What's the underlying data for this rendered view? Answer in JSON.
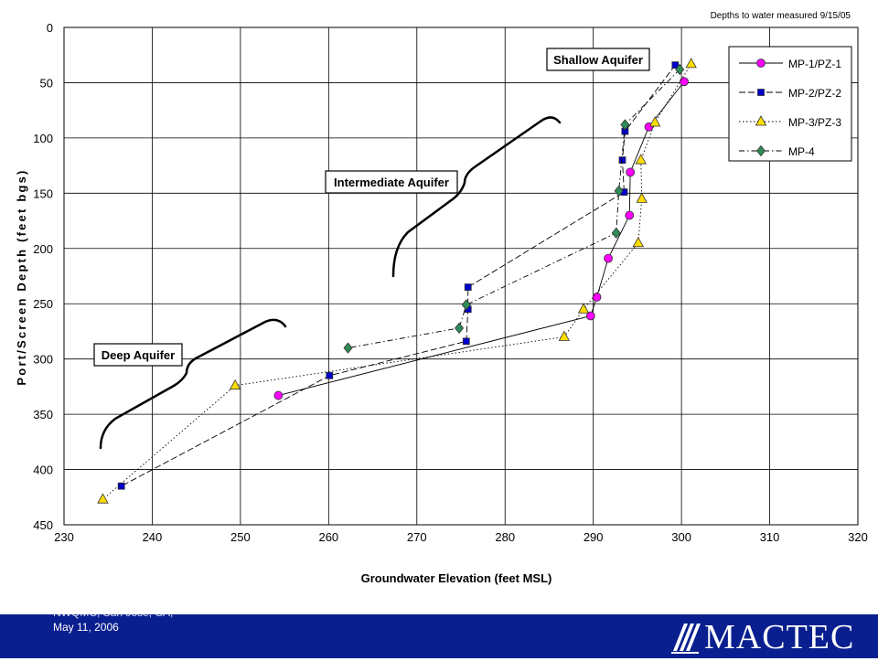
{
  "chart_data": {
    "type": "line",
    "title": "",
    "note": "Depths to water measured 9/15/05",
    "xlabel": "Groundwater Elevation (feet MSL)",
    "ylabel": "Port/Screen Depth (feet bgs)",
    "xlim": [
      230,
      320
    ],
    "ylim": [
      0,
      450
    ],
    "y_inverted": true,
    "x_ticks": [
      230,
      240,
      250,
      260,
      270,
      280,
      290,
      300,
      310,
      320
    ],
    "y_ticks": [
      0,
      50,
      100,
      150,
      200,
      250,
      300,
      350,
      400,
      450
    ],
    "grid": true,
    "legend_position": "top-right",
    "series": [
      {
        "name": "MP-1/PZ-1",
        "marker": "circle",
        "color": "#ff00ff",
        "line": "solid",
        "points": [
          [
            300.3,
            49
          ],
          [
            296.3,
            90
          ],
          [
            294.2,
            131
          ],
          [
            294.1,
            170
          ],
          [
            291.7,
            209
          ],
          [
            290.4,
            244
          ],
          [
            289.7,
            261
          ],
          [
            254.3,
            333
          ]
        ]
      },
      {
        "name": "MP-2/PZ-2",
        "marker": "square",
        "color": "#0000cc",
        "line": "dashed",
        "points": [
          [
            299.3,
            34
          ],
          [
            293.6,
            94
          ],
          [
            293.3,
            120
          ],
          [
            293.5,
            149
          ],
          [
            275.8,
            235
          ],
          [
            275.8,
            255
          ],
          [
            275.6,
            284
          ],
          [
            260.1,
            315
          ],
          [
            236.5,
            415
          ]
        ]
      },
      {
        "name": "MP-3/PZ-3",
        "marker": "triangle",
        "color": "#ffdd00",
        "line": "dotted",
        "points": [
          [
            301.1,
            33
          ],
          [
            297.0,
            86
          ],
          [
            295.4,
            120
          ],
          [
            295.5,
            155
          ],
          [
            295.1,
            195
          ],
          [
            288.9,
            255
          ],
          [
            286.7,
            280
          ],
          [
            249.4,
            324
          ],
          [
            234.4,
            427
          ]
        ]
      },
      {
        "name": "MP-4",
        "marker": "diamond",
        "color": "#2e8b57",
        "line": "dashdot",
        "points": [
          [
            299.8,
            38
          ],
          [
            293.6,
            88
          ],
          [
            292.9,
            148
          ],
          [
            292.6,
            186
          ],
          [
            275.6,
            251
          ],
          [
            274.8,
            272
          ],
          [
            262.2,
            290
          ]
        ]
      }
    ],
    "annotations": [
      {
        "text": "Shallow Aquifer"
      },
      {
        "text": "Intermediate Aquifer"
      },
      {
        "text": "Deep Aquifer"
      }
    ]
  },
  "footer": {
    "line1": "NWQMC, San Jose, CA,",
    "line2": "May 11, 2006",
    "logo_text": "MACTEC",
    "bar_color": "#0a1f8f"
  }
}
